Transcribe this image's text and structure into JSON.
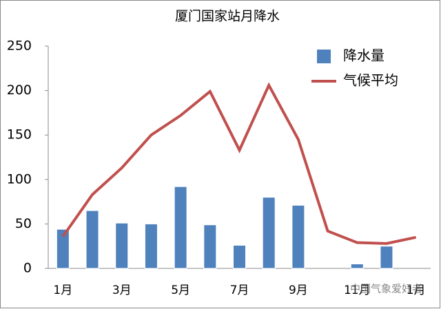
{
  "chart_data": {
    "type": "bar+line",
    "title": "厦门国家站月降水",
    "categories": [
      "1月",
      null,
      "3月",
      null,
      "5月",
      null,
      "7月",
      null,
      "9月",
      null,
      "11月",
      null,
      "1月"
    ],
    "series": [
      {
        "name": "降水量",
        "type": "bar",
        "color": "#4f81bd",
        "values": [
          44,
          65,
          51,
          50,
          92,
          49,
          26,
          80,
          71,
          null,
          5,
          25,
          null
        ]
      },
      {
        "name": "气候平均",
        "type": "line",
        "color": "#c0504d",
        "values": [
          36,
          83,
          113,
          150,
          172,
          199,
          133,
          206,
          145,
          42,
          29,
          28,
          35
        ]
      }
    ],
    "ylim": [
      0,
      250
    ],
    "yticks": [
      0,
      50,
      100,
      150,
      200,
      250
    ],
    "grid": false,
    "legend": "top-right",
    "watermark": "中国气象爱好者"
  }
}
